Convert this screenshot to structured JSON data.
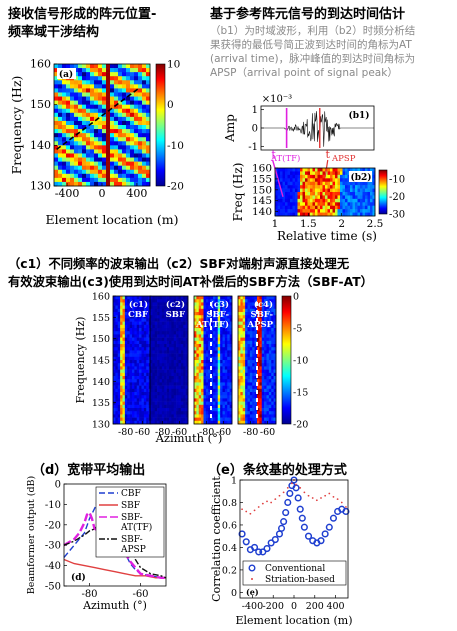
{
  "captions": {
    "a_l1": "接收信号形成的阵元位置-",
    "a_l2": "频率域干涉结构",
    "b_head": "基于参考阵元信号的到达时间估计",
    "b_note1": "（b1）为时域波形，利用（b2）时频分析结",
    "b_note2": "果获得的最低号简正波到达时间的角标为AT",
    "b_note3": "(arrival time)，脉冲峰值的到达时间角标为",
    "b_note4": "APSP（arrival point of signal peak）",
    "c_l1": "（c1）不同频率的波束输出（c2）SBF对端射声源直接处理无",
    "c_l2": "有效波束输出(c3)使用到达时间AT补偿后的SBF方法（SBF-AT）",
    "d": "（d）宽带平均输出",
    "e": "（e）条纹基的处理方式"
  },
  "chart_data": [
    {
      "id": "a",
      "type": "heatmap",
      "label": "(a)",
      "xlabel": "Element location (m)",
      "ylabel": "Frequency (Hz)",
      "xlim": [
        -550,
        550
      ],
      "ylim": [
        130,
        160
      ],
      "xticks": [
        -400,
        0,
        400
      ],
      "yticks": [
        130,
        140,
        150,
        160
      ],
      "colorbar": {
        "range": [
          -20,
          10
        ],
        "ticks": [
          10,
          0,
          -10,
          -20
        ]
      },
      "dashed_line": [
        [
          -520,
          139
        ],
        [
          420,
          154
        ]
      ]
    },
    {
      "id": "b1",
      "type": "line",
      "label": "(b1)",
      "ylabel": "Amp",
      "exponent": "×10⁻³",
      "xlim": [
        1,
        2.5
      ],
      "ylim": [
        -1.2,
        1.2
      ],
      "yticks": [
        -1,
        0,
        1
      ],
      "markers": {
        "AT_TF": 1.34,
        "APSP": 1.78
      },
      "marker_labels": {
        "AT": "t",
        "AT_sub": "AT(TF)",
        "APSP": "t",
        "APSP_sub": "APSP"
      }
    },
    {
      "id": "b2",
      "type": "heatmap",
      "label": "(b2)",
      "xlabel": "Relative time (s)",
      "ylabel": "Freq (Hz)",
      "xlim": [
        1,
        2.5
      ],
      "ylim": [
        138,
        160
      ],
      "xticks": [
        1,
        1.5,
        2,
        2.5
      ],
      "yticks": [
        140,
        145,
        150,
        155,
        160
      ],
      "colorbar": {
        "range": [
          -30,
          -5
        ],
        "ticks": [
          -10,
          -20,
          -30
        ]
      }
    },
    {
      "id": "c",
      "type": "heatmap",
      "xlabel": "Azimuth (°)",
      "ylabel": "Frequency (Hz)",
      "ylim": [
        130,
        160
      ],
      "yticks": [
        130,
        135,
        140,
        145,
        150,
        155,
        160
      ],
      "panels": [
        {
          "label": "(c1)",
          "name": "CBF",
          "xticks": [
            -80,
            -60
          ]
        },
        {
          "label": "(c2)",
          "name": "SBF",
          "xticks": [
            -80,
            -60
          ]
        },
        {
          "label": "(c3)",
          "name": "SBF-",
          "name2": "AT(TF)",
          "xticks": [
            -80,
            -60
          ]
        },
        {
          "label": "(c4)",
          "name": "SBF-",
          "name2": "APSP",
          "xticks": [
            -80,
            -60
          ]
        }
      ],
      "colorbar": {
        "range": [
          -20,
          0
        ],
        "ticks": [
          0,
          -5,
          -10,
          -15,
          -20
        ]
      }
    },
    {
      "id": "d",
      "type": "line",
      "label": "(d)",
      "xlabel": "Azimuth (°)",
      "ylabel": "Beamformer output (dB)",
      "xlim": [
        -90,
        -50
      ],
      "ylim": [
        -50,
        0
      ],
      "xticks": [
        -80,
        -60
      ],
      "yticks": [
        0,
        -10,
        -20,
        -30,
        -40,
        -50
      ],
      "series": [
        {
          "name": "CBF",
          "color": "#1f3fd0",
          "dash": "6,3",
          "x": [
            -90,
            -86,
            -82,
            -80,
            -78,
            -77,
            -76,
            -75,
            -74,
            -73,
            -72,
            -70,
            -68,
            -66,
            -64,
            -62,
            -60,
            -56,
            -52,
            -50
          ],
          "y": [
            -36,
            -30,
            -24,
            -17,
            -12,
            -9,
            -8,
            -10,
            -9,
            -12,
            -16,
            -21,
            -27,
            -34,
            -39,
            -42,
            -44,
            -45,
            -46,
            -46
          ]
        },
        {
          "name": "SBF",
          "color": "#e04040",
          "dash": "",
          "x": [
            -90,
            -86,
            -82,
            -78,
            -74,
            -70,
            -66,
            -62,
            -58,
            -54,
            -50
          ],
          "y": [
            -37,
            -39,
            -40,
            -41,
            -42,
            -43,
            -44,
            -45,
            -45,
            -46,
            -46
          ]
        },
        {
          "name": "SBF-",
          "name2": "AT(TF)",
          "color": "#e020e0",
          "dash": "8,3",
          "x": [
            -90,
            -86,
            -84,
            -82,
            -81,
            -80,
            -79,
            -78,
            -76,
            -74,
            -72,
            -70,
            -68,
            -66,
            -64,
            -62,
            -60,
            -56,
            -52,
            -50
          ],
          "y": [
            -30,
            -27,
            -24,
            -19,
            -15,
            -14,
            -17,
            -22,
            -23,
            -24,
            -25,
            -27,
            -30,
            -34,
            -38,
            -41,
            -44,
            -45,
            -46,
            -46
          ]
        },
        {
          "name": "SBF-",
          "name2": "APSP",
          "color": "#111111",
          "dash": "6,2,2,2",
          "x": [
            -90,
            -86,
            -82,
            -80,
            -78,
            -76,
            -74,
            -72,
            -71,
            -70,
            -69,
            -68,
            -66,
            -64,
            -62,
            -60,
            -56,
            -52,
            -50
          ],
          "y": [
            -30,
            -28,
            -25,
            -23,
            -22,
            -20,
            -17,
            -12,
            -8,
            -5,
            -9,
            -14,
            -22,
            -30,
            -37,
            -41,
            -44,
            -45,
            -46
          ]
        }
      ]
    },
    {
      "id": "e",
      "type": "scatter",
      "label": "(e)",
      "xlabel": "Element location (m)",
      "ylabel": "Correlation coefficient",
      "xlim": [
        -520,
        520
      ],
      "ylim": [
        -0.05,
        1
      ],
      "xticks": [
        -400,
        -200,
        0,
        200,
        400
      ],
      "yticks": [
        0,
        0.2,
        0.4,
        0.6,
        0.8,
        1
      ],
      "series": [
        {
          "name": "Conventional",
          "color": "#1f3fd0",
          "marker": "circle",
          "x": [
            -500,
            -460,
            -420,
            -380,
            -340,
            -300,
            -260,
            -220,
            -180,
            -140,
            -120,
            -100,
            -80,
            -60,
            -40,
            -20,
            0,
            20,
            40,
            60,
            80,
            100,
            140,
            180,
            220,
            260,
            300,
            340,
            380,
            420,
            460,
            500
          ],
          "y": [
            0.52,
            0.45,
            0.38,
            0.4,
            0.36,
            0.36,
            0.39,
            0.44,
            0.47,
            0.52,
            0.57,
            0.63,
            0.71,
            0.8,
            0.88,
            0.95,
            1.0,
            0.93,
            0.84,
            0.74,
            0.66,
            0.58,
            0.5,
            0.46,
            0.44,
            0.46,
            0.52,
            0.58,
            0.66,
            0.72,
            0.74,
            0.72
          ]
        },
        {
          "name": "Striation-based",
          "color": "#e04040",
          "marker": "dot",
          "x": [
            -500,
            -460,
            -420,
            -380,
            -340,
            -300,
            -260,
            -220,
            -180,
            -140,
            -100,
            -60,
            -20,
            0,
            20,
            60,
            100,
            140,
            180,
            220,
            260,
            300,
            340,
            380,
            420,
            460,
            500
          ],
          "y": [
            0.74,
            0.72,
            0.7,
            0.73,
            0.76,
            0.79,
            0.81,
            0.8,
            0.83,
            0.86,
            0.89,
            0.93,
            0.97,
            1.0,
            0.96,
            0.93,
            0.89,
            0.86,
            0.84,
            0.82,
            0.84,
            0.86,
            0.88,
            0.85,
            0.83,
            0.8,
            0.76
          ]
        }
      ]
    }
  ]
}
